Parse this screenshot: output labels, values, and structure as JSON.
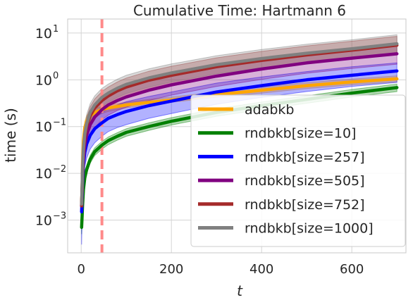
{
  "chart_data": {
    "type": "line",
    "title": "Cumulative Time: Hartmann 6",
    "xlabel": "t",
    "ylabel": "time (s)",
    "xlim": [
      -30,
      720
    ],
    "ylim_log10": [
      -3.7,
      1.3
    ],
    "yscale": "log",
    "grid": true,
    "legend_position": "lower-right",
    "xticks": [
      {
        "value": 0,
        "label": "0"
      },
      {
        "value": 200,
        "label": "200"
      },
      {
        "value": 400,
        "label": "400"
      },
      {
        "value": 600,
        "label": "600"
      }
    ],
    "yticks": [
      {
        "exp": -3,
        "base": "10",
        "sup": "−3"
      },
      {
        "exp": -2,
        "base": "10",
        "sup": "−2"
      },
      {
        "exp": -1,
        "base": "10",
        "sup": "−1"
      },
      {
        "exp": 0,
        "base": "10",
        "sup": "0"
      },
      {
        "exp": 1,
        "base": "10",
        "sup": "1"
      }
    ],
    "vline": {
      "x": 46,
      "color": "#ff8a8a"
    },
    "x": [
      1,
      2,
      3,
      5,
      8,
      12,
      20,
      30,
      46,
      60,
      80,
      100,
      150,
      200,
      300,
      400,
      500,
      600,
      700
    ],
    "series": [
      {
        "name": "adabkb",
        "color": "#ffa500",
        "values": [
          0.0025,
          0.004,
          0.015,
          0.05,
          0.095,
          0.13,
          0.17,
          0.2,
          0.23,
          0.25,
          0.27,
          0.29,
          0.33,
          0.37,
          0.48,
          0.6,
          0.75,
          0.9,
          1.05
        ],
        "lower": [
          0.0015,
          0.0025,
          0.01,
          0.035,
          0.07,
          0.1,
          0.13,
          0.16,
          0.19,
          0.21,
          0.23,
          0.25,
          0.29,
          0.33,
          0.42,
          0.52,
          0.65,
          0.78,
          0.9
        ],
        "upper": [
          0.004,
          0.007,
          0.022,
          0.07,
          0.13,
          0.17,
          0.21,
          0.24,
          0.27,
          0.29,
          0.31,
          0.33,
          0.38,
          0.43,
          0.55,
          0.7,
          0.87,
          1.04,
          1.22
        ]
      },
      {
        "name": "rndbkb[size=10]",
        "color": "#008000",
        "values": [
          0.0007,
          0.0012,
          0.002,
          0.0045,
          0.008,
          0.012,
          0.02,
          0.029,
          0.04,
          0.05,
          0.062,
          0.075,
          0.1,
          0.13,
          0.2,
          0.28,
          0.38,
          0.52,
          0.68
        ],
        "lower": [
          0.0005,
          0.0009,
          0.0015,
          0.0035,
          0.0065,
          0.0098,
          0.0165,
          0.024,
          0.033,
          0.041,
          0.051,
          0.062,
          0.083,
          0.108,
          0.166,
          0.232,
          0.315,
          0.43,
          0.56
        ],
        "upper": [
          0.0009,
          0.0015,
          0.0026,
          0.0055,
          0.0098,
          0.0146,
          0.0243,
          0.035,
          0.048,
          0.06,
          0.074,
          0.09,
          0.12,
          0.155,
          0.24,
          0.335,
          0.455,
          0.62,
          0.81
        ]
      },
      {
        "name": "rndbkb[size=257]",
        "color": "#0000ff",
        "values": [
          0.0015,
          0.003,
          0.006,
          0.015,
          0.028,
          0.042,
          0.065,
          0.09,
          0.12,
          0.15,
          0.18,
          0.21,
          0.28,
          0.35,
          0.55,
          0.75,
          1.0,
          1.25,
          1.55
        ],
        "lower": [
          0.0003,
          0.0012,
          0.0028,
          0.0075,
          0.014,
          0.021,
          0.033,
          0.045,
          0.062,
          0.078,
          0.095,
          0.11,
          0.15,
          0.19,
          0.3,
          0.42,
          0.56,
          0.72,
          0.88
        ],
        "upper": [
          0.0035,
          0.006,
          0.012,
          0.028,
          0.05,
          0.075,
          0.11,
          0.15,
          0.2,
          0.24,
          0.29,
          0.34,
          0.44,
          0.55,
          0.85,
          1.15,
          1.5,
          1.9,
          2.3
        ]
      },
      {
        "name": "rndbkb[size=505]",
        "color": "#800080",
        "values": [
          0.002,
          0.004,
          0.008,
          0.02,
          0.04,
          0.065,
          0.11,
          0.16,
          0.23,
          0.29,
          0.36,
          0.43,
          0.6,
          0.78,
          1.2,
          1.7,
          2.3,
          2.9,
          3.6
        ],
        "lower": [
          0.0012,
          0.0025,
          0.005,
          0.012,
          0.024,
          0.04,
          0.065,
          0.095,
          0.14,
          0.175,
          0.22,
          0.26,
          0.36,
          0.47,
          0.72,
          1.02,
          1.38,
          1.75,
          2.15
        ],
        "upper": [
          0.0035,
          0.007,
          0.014,
          0.034,
          0.068,
          0.11,
          0.185,
          0.27,
          0.38,
          0.48,
          0.6,
          0.72,
          1.0,
          1.3,
          2.0,
          2.85,
          3.85,
          4.85,
          6.0
        ]
      },
      {
        "name": "rndbkb[size=752]",
        "color": "#a52a2a",
        "values": [
          0.002,
          0.0045,
          0.01,
          0.028,
          0.06,
          0.1,
          0.17,
          0.25,
          0.36,
          0.45,
          0.58,
          0.7,
          0.98,
          1.25,
          1.9,
          2.6,
          3.4,
          4.3,
          5.5
        ],
        "lower": [
          0.0013,
          0.0029,
          0.0065,
          0.018,
          0.039,
          0.065,
          0.11,
          0.16,
          0.23,
          0.29,
          0.37,
          0.45,
          0.63,
          0.8,
          1.22,
          1.67,
          2.18,
          2.76,
          3.5
        ],
        "upper": [
          0.0031,
          0.007,
          0.0155,
          0.043,
          0.093,
          0.155,
          0.265,
          0.39,
          0.56,
          0.7,
          0.9,
          1.09,
          1.52,
          1.95,
          2.95,
          4.05,
          5.3,
          6.7,
          8.5
        ]
      },
      {
        "name": "rndbkb[size=1000]",
        "color": "#808080",
        "values": [
          0.0022,
          0.005,
          0.012,
          0.033,
          0.07,
          0.115,
          0.2,
          0.29,
          0.42,
          0.52,
          0.66,
          0.8,
          1.1,
          1.4,
          2.1,
          2.85,
          3.7,
          4.6,
          5.9
        ],
        "lower": [
          0.0014,
          0.0032,
          0.0077,
          0.021,
          0.045,
          0.074,
          0.128,
          0.186,
          0.27,
          0.333,
          0.42,
          0.51,
          0.7,
          0.9,
          1.35,
          1.82,
          2.37,
          2.95,
          3.78
        ],
        "upper": [
          0.0034,
          0.0078,
          0.0187,
          0.051,
          0.109,
          0.18,
          0.31,
          0.45,
          0.655,
          0.81,
          1.03,
          1.25,
          1.72,
          2.18,
          3.28,
          4.45,
          5.78,
          7.18,
          9.2
        ]
      }
    ]
  }
}
